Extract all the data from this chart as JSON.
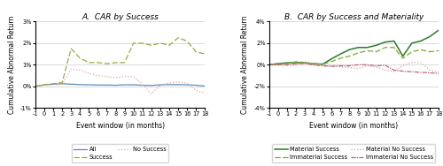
{
  "x": [
    -1,
    0,
    1,
    2,
    3,
    4,
    5,
    6,
    7,
    8,
    9,
    10,
    11,
    12,
    13,
    14,
    15,
    16,
    17,
    18
  ],
  "panel_a": {
    "title": "A.  CAR by Success",
    "all": [
      0.0,
      0.07,
      0.1,
      0.12,
      0.1,
      0.08,
      0.07,
      0.06,
      0.06,
      0.05,
      0.07,
      0.07,
      0.05,
      0.04,
      0.07,
      0.08,
      0.08,
      0.07,
      0.05,
      0.01
    ],
    "success": [
      0.0,
      0.08,
      0.12,
      0.18,
      1.75,
      1.3,
      1.1,
      1.1,
      1.05,
      1.1,
      1.1,
      2.0,
      2.0,
      1.9,
      2.0,
      1.9,
      2.25,
      2.1,
      1.6,
      1.5
    ],
    "no_success": [
      0.0,
      0.05,
      0.07,
      0.08,
      0.8,
      0.75,
      0.6,
      0.5,
      0.45,
      0.4,
      0.45,
      0.45,
      0.1,
      -0.35,
      0.05,
      0.15,
      0.2,
      0.15,
      -0.2,
      -0.3
    ],
    "ylim": [
      -1,
      3
    ],
    "yticks": [
      -1,
      0,
      1,
      2,
      3
    ],
    "ytick_labels": [
      "-1%",
      "0%",
      "1%",
      "2%",
      "3%"
    ],
    "xlabel": "Event window (in months)",
    "ylabel": "Cumulative Abnormal Return"
  },
  "panel_b": {
    "title": "B.  CAR by Success and Materiality",
    "mat_success": [
      0.0,
      0.1,
      0.18,
      0.2,
      0.18,
      0.1,
      0.05,
      0.55,
      1.0,
      1.4,
      1.6,
      1.6,
      1.8,
      2.1,
      2.2,
      0.8,
      2.0,
      2.2,
      2.6,
      3.2
    ],
    "immat_success": [
      0.0,
      0.08,
      0.1,
      0.28,
      0.22,
      0.1,
      0.05,
      0.3,
      0.6,
      0.8,
      1.1,
      1.3,
      1.2,
      1.6,
      1.6,
      0.6,
      1.2,
      1.4,
      1.2,
      1.3
    ],
    "mat_no_success": [
      0.0,
      -0.05,
      -0.08,
      -0.05,
      0.18,
      0.12,
      -0.02,
      -0.1,
      -0.2,
      -0.25,
      -0.35,
      -0.1,
      -0.2,
      -0.5,
      -0.65,
      -0.05,
      0.2,
      0.2,
      -0.5,
      -0.7
    ],
    "immat_no_success": [
      0.0,
      0.0,
      0.0,
      0.1,
      0.12,
      -0.03,
      -0.1,
      -0.15,
      -0.1,
      -0.1,
      0.0,
      0.0,
      -0.1,
      -0.05,
      -0.5,
      -0.6,
      -0.65,
      -0.7,
      -0.75,
      -0.8
    ],
    "ylim": [
      -4,
      4
    ],
    "yticks": [
      -4,
      -2,
      0,
      2,
      4
    ],
    "ytick_labels": [
      "-4%",
      "-2%",
      "0%",
      "2%",
      "4%"
    ],
    "xlabel": "Event window (in months)",
    "ylabel": "Cumulative Abnormal Return"
  },
  "colors": {
    "all": "#5b8db8",
    "success": "#9aaa44",
    "no_success": "#e8a0a0",
    "mat_success": "#2a7a2a",
    "immat_success": "#7aaa2a",
    "mat_no_success": "#d4a0b0",
    "immat_no_success": "#c06070"
  },
  "title_fontsize": 6.5,
  "label_fontsize": 5.5,
  "tick_fontsize": 4.8,
  "legend_fontsize": 4.8
}
